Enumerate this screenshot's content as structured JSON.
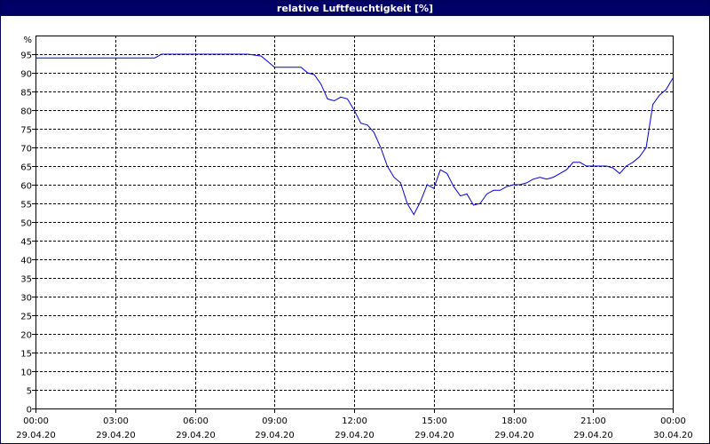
{
  "chart_data": {
    "type": "line",
    "title": "relative Luftfeuchtigkeit [%]",
    "ylabel": "%",
    "ylim": [
      0,
      100
    ],
    "xlim": [
      "29.04.20 00:00",
      "30.04.20 00:00"
    ],
    "grid": true,
    "line_color": "#0000cc",
    "y_ticks": [
      0,
      5,
      10,
      15,
      20,
      25,
      30,
      35,
      40,
      45,
      50,
      55,
      60,
      65,
      70,
      75,
      80,
      85,
      90,
      95
    ],
    "x_ticks": [
      {
        "time": "00:00",
        "date": "29.04.20",
        "h": 0
      },
      {
        "time": "03:00",
        "date": "29.04.20",
        "h": 3
      },
      {
        "time": "06:00",
        "date": "29.04.20",
        "h": 6
      },
      {
        "time": "09:00",
        "date": "29.04.20",
        "h": 9
      },
      {
        "time": "12:00",
        "date": "29.04.20",
        "h": 12
      },
      {
        "time": "15:00",
        "date": "29.04.20",
        "h": 15
      },
      {
        "time": "18:00",
        "date": "29.04.20",
        "h": 18
      },
      {
        "time": "21:00",
        "date": "29.04.20",
        "h": 21
      },
      {
        "time": "00:00",
        "date": "30.04.20",
        "h": 24
      }
    ],
    "series": [
      {
        "x": [
          0,
          0.5,
          1,
          1.5,
          2,
          2.5,
          3,
          3.5,
          4,
          4.5,
          4.75,
          5,
          5.5,
          6,
          6.5,
          7,
          7.5,
          8,
          8.5,
          8.75,
          9,
          9.5,
          10,
          10.25,
          10.5,
          10.75,
          11,
          11.25,
          11.5,
          11.75,
          12,
          12.25,
          12.5,
          12.75,
          13,
          13.25,
          13.5,
          13.75,
          14,
          14.25,
          14.5,
          14.75,
          15,
          15.25,
          15.5,
          15.75,
          16,
          16.25,
          16.5,
          16.75,
          17,
          17.25,
          17.5,
          17.75,
          18,
          18.25,
          18.5,
          18.75,
          19,
          19.25,
          19.5,
          19.75,
          20,
          20.25,
          20.5,
          20.75,
          21,
          21.25,
          21.5,
          21.75,
          22,
          22.25,
          22.5,
          22.75,
          23,
          23.25,
          23.5,
          23.75,
          24
        ],
        "y": [
          94,
          94,
          94,
          94,
          94,
          94,
          94,
          94,
          94,
          94,
          95,
          95,
          95,
          95,
          95,
          95,
          95,
          95,
          94.5,
          93,
          91.5,
          91.5,
          91.5,
          90,
          89.5,
          87,
          83,
          82.5,
          83.5,
          83,
          80,
          76.5,
          76,
          74,
          70,
          65,
          62,
          60.5,
          55,
          52,
          55.5,
          60,
          59,
          64,
          63,
          59.5,
          57,
          57.5,
          54.5,
          55,
          57.5,
          58.5,
          58.5,
          59.5,
          60,
          60,
          60.5,
          61.5,
          62,
          61.5,
          62,
          63,
          64,
          66,
          66,
          65,
          65,
          65,
          65,
          64.5,
          63,
          65,
          66,
          67.5,
          70,
          81.5,
          84,
          85.5,
          88.5
        ]
      }
    ]
  }
}
